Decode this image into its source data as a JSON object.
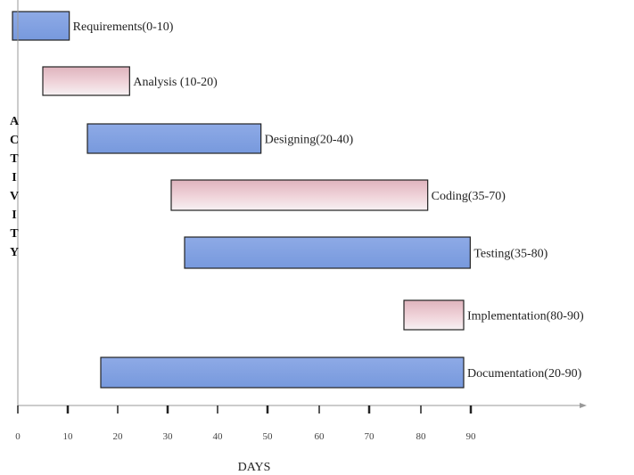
{
  "chart_data": {
    "type": "bar",
    "orientation": "horizontal",
    "grid": false,
    "legend": "none",
    "xlabel": "DAYS",
    "ylabel": "ACTIVITY",
    "xlim": [
      0,
      110
    ],
    "xticks": [
      0,
      10,
      20,
      30,
      40,
      50,
      60,
      70,
      80,
      90
    ],
    "colors": {
      "blue": "#7799dd",
      "pink": "#f0d4da",
      "outline": "#222222"
    },
    "tasks": [
      {
        "label": "Requirements(0-10)",
        "start": 0,
        "end": 10,
        "color": "blue"
      },
      {
        "label": "Analysis (10-20)",
        "start": 10,
        "end": 20,
        "color": "pink"
      },
      {
        "label": "Designing(20-40)",
        "start": 20,
        "end": 40,
        "color": "blue"
      },
      {
        "label": "Coding(35-70)",
        "start": 35,
        "end": 70,
        "color": "pink"
      },
      {
        "label": "Testing(35-80)",
        "start": 35,
        "end": 80,
        "color": "blue"
      },
      {
        "label": "Implementation(80-90)",
        "start": 80,
        "end": 90,
        "color": "pink"
      },
      {
        "label": "Documentation(20-90)",
        "start": 20,
        "end": 90,
        "color": "blue"
      }
    ]
  }
}
